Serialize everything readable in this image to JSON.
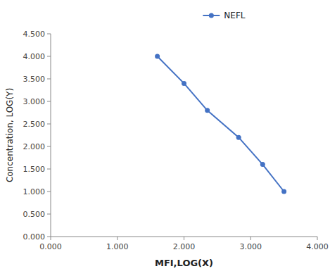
{
  "chart_data": {
    "type": "line",
    "x": [
      1.6,
      2.0,
      2.35,
      2.82,
      3.18,
      3.5
    ],
    "series": [
      {
        "name": "NEFL",
        "color": "#4472C4",
        "marker": "circle",
        "values": [
          4.0,
          3.4,
          2.8,
          2.2,
          1.6,
          1.0
        ]
      }
    ],
    "xlabel": "MFI,LOG(X)",
    "ylabel": "Concentration, LOG(Y)",
    "xlim": [
      0.0,
      4.0
    ],
    "ylim": [
      0.0,
      4.5
    ],
    "xticks": [
      {
        "value": 0.0,
        "label": "0.000"
      },
      {
        "value": 1.0,
        "label": "1.000"
      },
      {
        "value": 2.0,
        "label": "2.000"
      },
      {
        "value": 3.0,
        "label": "3.000"
      },
      {
        "value": 4.0,
        "label": "4.000"
      }
    ],
    "yticks": [
      {
        "value": 0.0,
        "label": "0.000"
      },
      {
        "value": 0.5,
        "label": "0.500"
      },
      {
        "value": 1.0,
        "label": "1.000"
      },
      {
        "value": 1.5,
        "label": "1.500"
      },
      {
        "value": 2.0,
        "label": "2.000"
      },
      {
        "value": 2.5,
        "label": "2.500"
      },
      {
        "value": 3.0,
        "label": "3.000"
      },
      {
        "value": 3.5,
        "label": "3.500"
      },
      {
        "value": 4.0,
        "label": "4.000"
      },
      {
        "value": 4.5,
        "label": "4.500"
      }
    ],
    "legend": "top",
    "grid": false
  }
}
